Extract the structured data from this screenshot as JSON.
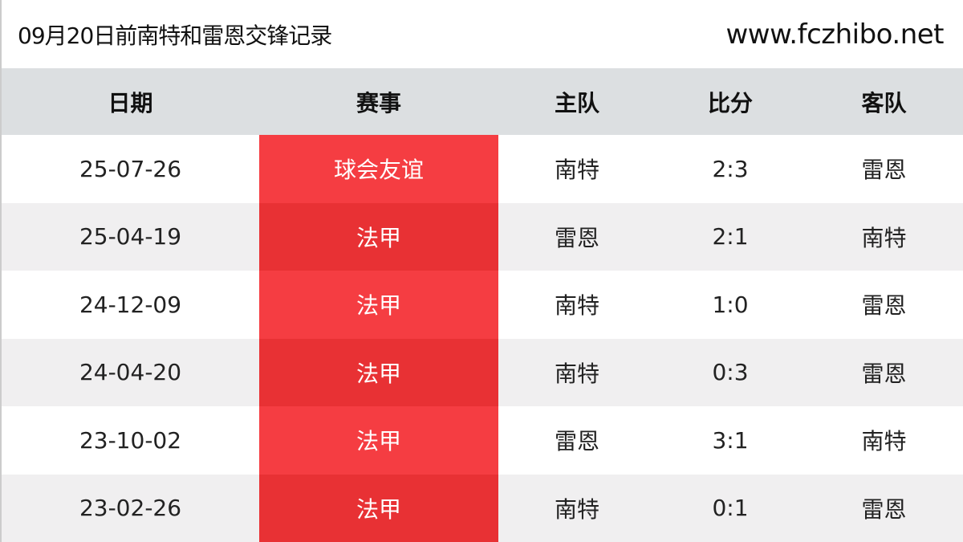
{
  "title": "09月20日前南特和雷恩交锋记录",
  "site": "www.fczhibo.net",
  "headers": [
    "日期",
    "赛事",
    "主队",
    "比分",
    "客队"
  ],
  "colors": {
    "competition_red": "#f53d42",
    "competition_red_alt": "#e83134",
    "header_bg": "#dcdfe1"
  },
  "rows": [
    {
      "date": "25-07-26",
      "comp": "球会友谊",
      "home": "南特",
      "score": "2:3",
      "away": "雷恩"
    },
    {
      "date": "25-04-19",
      "comp": "法甲",
      "home": "雷恩",
      "score": "2:1",
      "away": "南特"
    },
    {
      "date": "24-12-09",
      "comp": "法甲",
      "home": "南特",
      "score": "1:0",
      "away": "雷恩"
    },
    {
      "date": "24-04-20",
      "comp": "法甲",
      "home": "南特",
      "score": "0:3",
      "away": "雷恩"
    },
    {
      "date": "23-10-02",
      "comp": "法甲",
      "home": "雷恩",
      "score": "3:1",
      "away": "南特"
    },
    {
      "date": "23-02-26",
      "comp": "法甲",
      "home": "南特",
      "score": "0:1",
      "away": "雷恩"
    }
  ]
}
